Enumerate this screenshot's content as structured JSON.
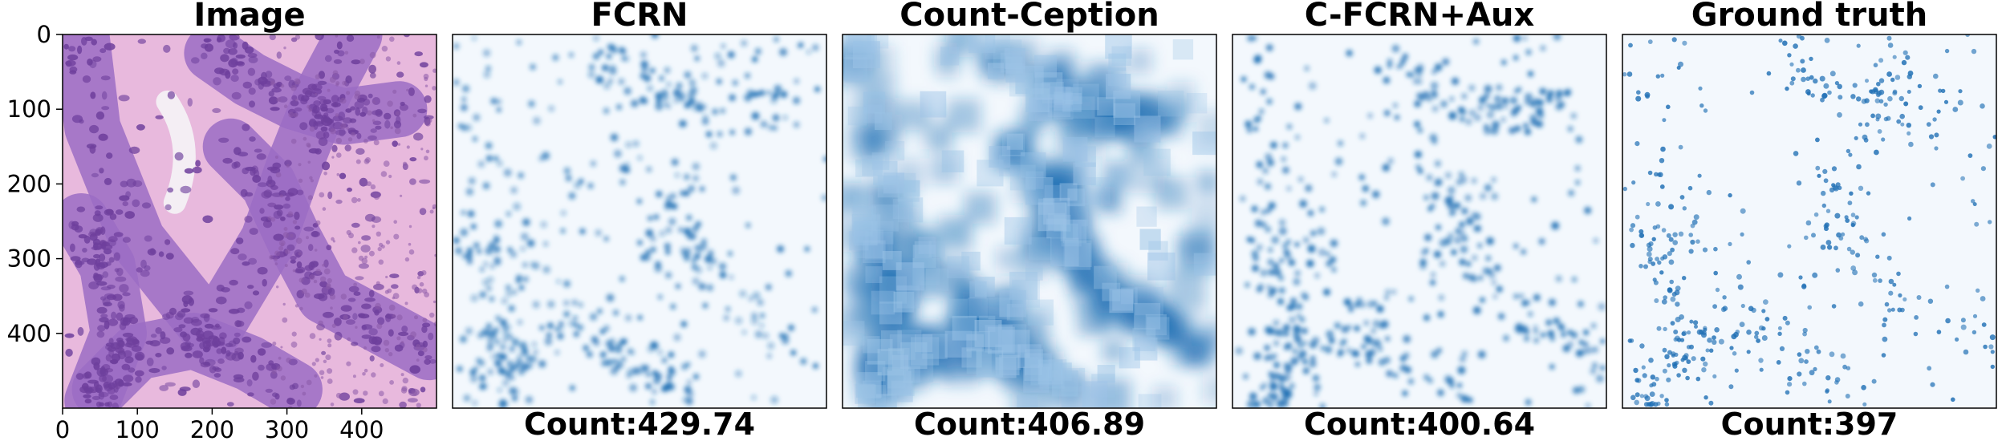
{
  "panels": [
    {
      "id": "image",
      "title": "Image",
      "count": ""
    },
    {
      "id": "fcrn",
      "title": "FCRN",
      "count": "Count:429.74"
    },
    {
      "id": "count-ception",
      "title": "Count-Ception",
      "count": "Count:406.89"
    },
    {
      "id": "c-fcrn-aux",
      "title": "C-FCRN+Aux",
      "count": "Count:400.64"
    },
    {
      "id": "ground-truth",
      "title": "Ground truth",
      "count": "Count:397"
    }
  ],
  "axis": {
    "y_ticks": [
      "0",
      "100",
      "200",
      "300",
      "400"
    ],
    "x_ticks": [
      "0",
      "100",
      "200",
      "300",
      "400"
    ],
    "range": [
      0,
      500
    ]
  },
  "colors": {
    "tissue_pink": "#e8b9dd",
    "tissue_purple": "#6e3f9c",
    "map_background": "#f3f8fd",
    "map_dot": "#1f6fb4"
  }
}
